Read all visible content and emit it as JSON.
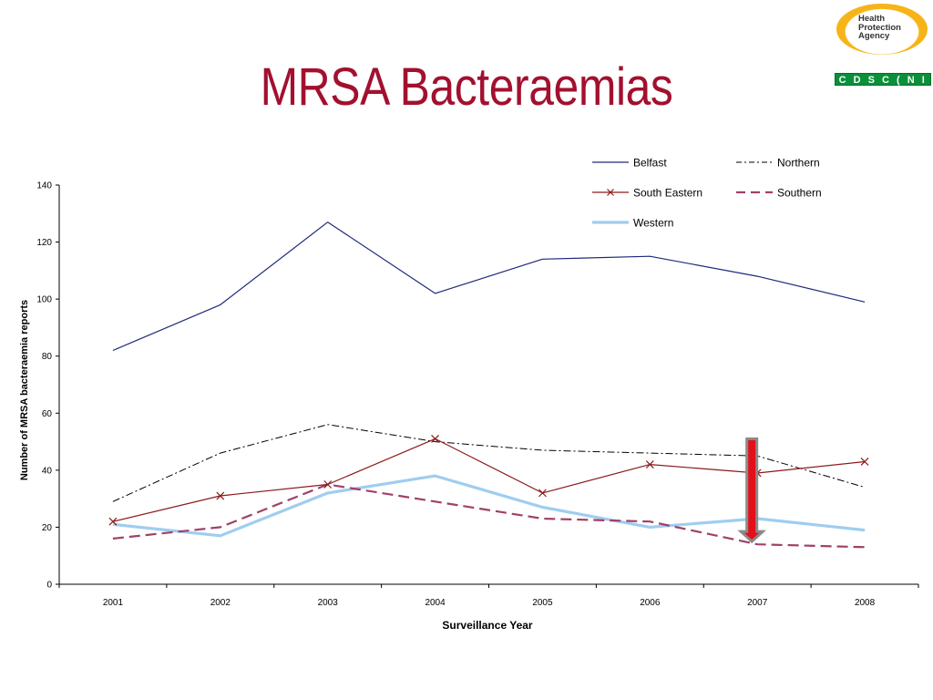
{
  "slide": {
    "title": "MRSA Bacteraemias"
  },
  "logos": {
    "hpa_text": [
      "Health",
      "Protection",
      "Agency"
    ],
    "cdsc_text": "C D S C ( N I )"
  },
  "colors": {
    "title": "#a3102f",
    "belfast": "#1f2a7a",
    "northern": "#000000",
    "south_eastern": "#8b1a1a",
    "southern": "#a0406a",
    "western": "#9fcdf0",
    "arrow_fill": "#e3101a",
    "arrow_border": "#8a8a8a"
  },
  "chart_data": {
    "type": "line",
    "xlabel": "Surveillance Year",
    "ylabel": "Number of MRSA bacteraemia reports",
    "categories": [
      "2001",
      "2002",
      "2003",
      "2004",
      "2005",
      "2006",
      "2007",
      "2008"
    ],
    "ylim": [
      0,
      140
    ],
    "yticks": [
      0,
      20,
      40,
      60,
      80,
      100,
      120,
      140
    ],
    "grid": false,
    "legend_position": "top-right",
    "series": [
      {
        "name": "Belfast",
        "style": "solid",
        "marker": "none",
        "values": [
          82,
          98,
          127,
          102,
          114,
          115,
          108,
          99
        ]
      },
      {
        "name": "Northern",
        "style": "dash-dot",
        "marker": "none",
        "values": [
          29,
          46,
          56,
          50,
          47,
          46,
          45,
          34
        ]
      },
      {
        "name": "South Eastern",
        "style": "solid",
        "marker": "x",
        "values": [
          22,
          31,
          35,
          51,
          32,
          42,
          39,
          43
        ]
      },
      {
        "name": "Southern",
        "style": "dashed",
        "marker": "none",
        "values": [
          16,
          20,
          35,
          29,
          23,
          22,
          14,
          13
        ]
      },
      {
        "name": "Western",
        "style": "solid-thick",
        "marker": "none",
        "values": [
          21,
          17,
          32,
          38,
          27,
          20,
          23,
          19
        ]
      }
    ],
    "annotations": [
      {
        "type": "down-arrow",
        "x": "2007",
        "y_from": 51,
        "y_to": 15
      }
    ]
  }
}
